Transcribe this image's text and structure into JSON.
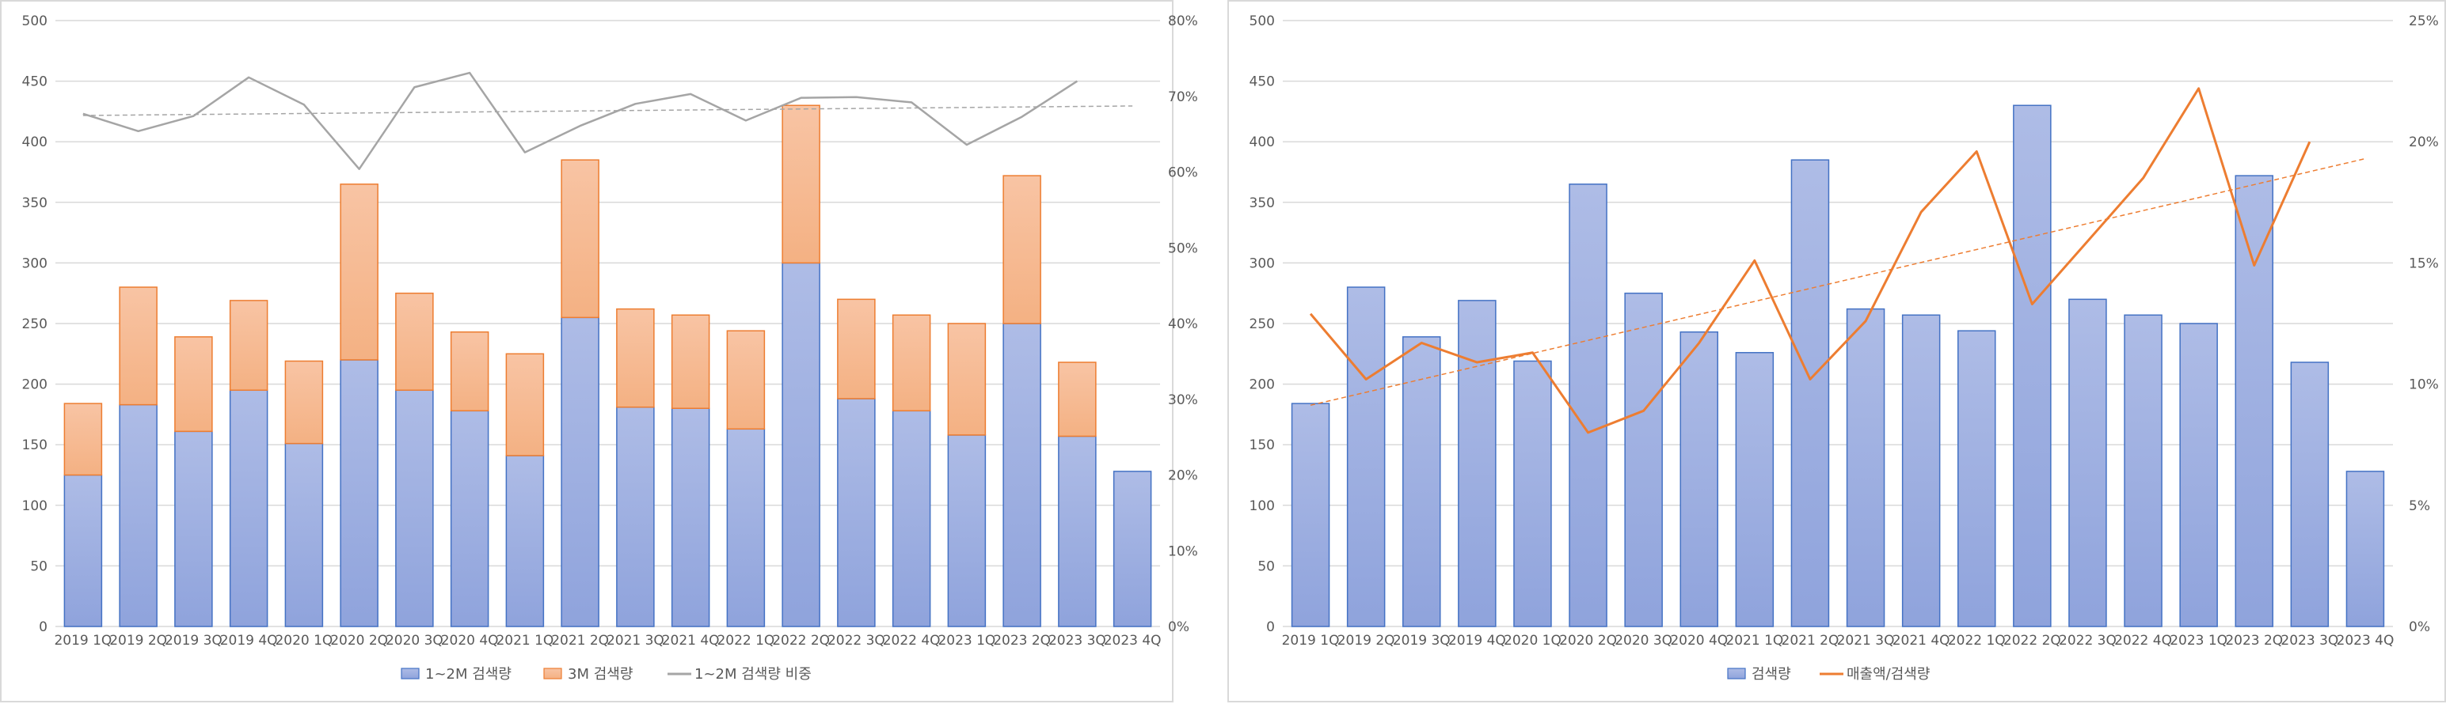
{
  "charts": [
    {
      "type": "bar",
      "stacked": true,
      "categories": [
        "2019 1Q",
        "2019 2Q",
        "2019 3Q",
        "2019 4Q",
        "2020 1Q",
        "2020 2Q",
        "2020 3Q",
        "2020 4Q",
        "2021 1Q",
        "2021 2Q",
        "2021 3Q",
        "2021 4Q",
        "2022 1Q",
        "2022 2Q",
        "2022 3Q",
        "2022 4Q",
        "2023 1Q",
        "2023 2Q",
        "2023 3Q",
        "2023 4Q"
      ],
      "series": [
        {
          "name": "1~2M 검색량",
          "type": "bar",
          "axis": "left",
          "color": "#8FA3DC",
          "values": [
            125,
            183,
            161,
            195,
            151,
            220,
            195,
            178,
            141,
            255,
            181,
            180,
            163,
            300,
            188,
            178,
            158,
            250,
            157,
            128
          ]
        },
        {
          "name": "3M 검색량",
          "type": "bar",
          "axis": "left",
          "color": "#F4B183",
          "values": [
            59,
            97,
            78,
            74,
            68,
            145,
            80,
            65,
            84,
            130,
            81,
            77,
            81,
            130,
            82,
            79,
            92,
            122,
            61,
            0
          ]
        },
        {
          "name": "1~2M 검색량 비중",
          "type": "line",
          "axis": "right",
          "color": "#A5A5A5",
          "values": [
            0.677,
            0.654,
            0.674,
            0.725,
            0.689,
            0.604,
            0.712,
            0.731,
            0.626,
            0.661,
            0.69,
            0.703,
            0.668,
            0.698,
            0.699,
            0.692,
            0.636,
            0.673,
            0.72,
            null
          ],
          "trendline": "linear"
        }
      ],
      "y_left": {
        "min": 0,
        "max": 500,
        "ticks": [
          "0",
          "50",
          "100",
          "150",
          "200",
          "250",
          "300",
          "350",
          "400",
          "450",
          "500"
        ]
      },
      "y_right": {
        "min": 0,
        "max": 0.8,
        "ticks": [
          "0%",
          "10%",
          "20%",
          "30%",
          "40%",
          "50%",
          "60%",
          "70%",
          "80%"
        ]
      },
      "grid": true,
      "legend_position": "bottom"
    },
    {
      "type": "bar",
      "stacked": false,
      "categories": [
        "2019 1Q",
        "2019 2Q",
        "2019 3Q",
        "2019 4Q",
        "2020 1Q",
        "2020 2Q",
        "2020 3Q",
        "2020 4Q",
        "2021 1Q",
        "2021 2Q",
        "2021 3Q",
        "2021 4Q",
        "2022 1Q",
        "2022 2Q",
        "2022 3Q",
        "2022 4Q",
        "2023 1Q",
        "2023 2Q",
        "2023 3Q",
        "2023 4Q"
      ],
      "series": [
        {
          "name": "검색량",
          "type": "bar",
          "axis": "left",
          "color": "#8FA3DC",
          "values": [
            184,
            280,
            239,
            269,
            219,
            365,
            275,
            243,
            226,
            385,
            262,
            257,
            244,
            430,
            270,
            257,
            250,
            372,
            218,
            128
          ]
        },
        {
          "name": "매출액/검색량",
          "type": "line",
          "axis": "right",
          "color": "#ED7D31",
          "values": [
            0.129,
            0.102,
            0.117,
            0.109,
            0.113,
            0.08,
            0.089,
            0.117,
            0.151,
            0.102,
            0.126,
            0.171,
            0.196,
            0.133,
            0.159,
            0.185,
            0.222,
            0.149,
            0.2,
            null
          ],
          "trendline": "linear"
        }
      ],
      "y_left": {
        "min": 0,
        "max": 500,
        "ticks": [
          "0",
          "50",
          "100",
          "150",
          "200",
          "250",
          "300",
          "350",
          "400",
          "450",
          "500"
        ]
      },
      "y_right": {
        "min": 0,
        "max": 0.25,
        "ticks": [
          "0%",
          "5%",
          "10%",
          "15%",
          "20%",
          "25%"
        ]
      },
      "grid": true,
      "legend_position": "bottom"
    }
  ]
}
